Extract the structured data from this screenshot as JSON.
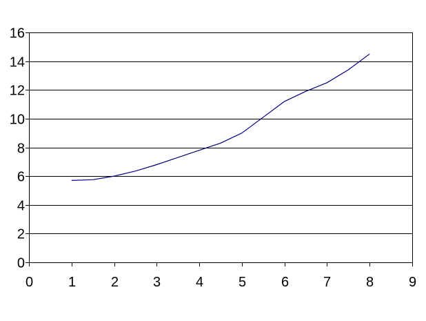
{
  "chart_data": {
    "type": "line",
    "title": "",
    "xlabel": "",
    "ylabel": "",
    "xlim": [
      0,
      9
    ],
    "ylim": [
      0,
      16
    ],
    "x_ticks": [
      "0",
      "1",
      "2",
      "3",
      "4",
      "5",
      "6",
      "7",
      "8",
      "9"
    ],
    "y_ticks": [
      "0",
      "2",
      "4",
      "6",
      "8",
      "10",
      "12",
      "14",
      "16"
    ],
    "grid": "horizontal",
    "legend": "none",
    "series": [
      {
        "color": "#000080",
        "x": [
          1,
          1.5,
          2,
          2.5,
          3,
          3.5,
          4,
          4.5,
          5,
          5.5,
          6,
          6.5,
          7,
          7.5,
          8
        ],
        "y": [
          5.7,
          5.75,
          6.0,
          6.35,
          6.8,
          7.3,
          7.8,
          8.3,
          9.0,
          10.1,
          11.2,
          11.9,
          12.5,
          13.4,
          14.5
        ]
      }
    ]
  }
}
